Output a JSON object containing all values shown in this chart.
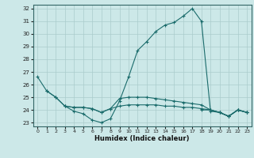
{
  "x": [
    0,
    1,
    2,
    3,
    4,
    5,
    6,
    7,
    8,
    9,
    10,
    11,
    12,
    13,
    14,
    15,
    16,
    17,
    18,
    19,
    20,
    21,
    22,
    23
  ],
  "line1": [
    26.6,
    25.5,
    25.0,
    24.3,
    23.9,
    23.7,
    23.2,
    23.0,
    23.3,
    24.7,
    26.6,
    28.7,
    29.4,
    30.2,
    30.7,
    30.9,
    31.4,
    32.0,
    31.0,
    23.9,
    23.8,
    23.5,
    24.0,
    23.8
  ],
  "line2": [
    null,
    25.5,
    25.0,
    24.3,
    24.2,
    24.2,
    24.1,
    23.8,
    24.1,
    24.9,
    25.0,
    25.0,
    25.0,
    24.9,
    24.8,
    24.7,
    24.6,
    24.5,
    24.4,
    24.0,
    23.8,
    23.5,
    24.0,
    23.8
  ],
  "line3": [
    null,
    null,
    null,
    24.3,
    24.2,
    24.2,
    24.1,
    23.8,
    24.1,
    24.3,
    24.4,
    24.4,
    24.4,
    24.4,
    24.3,
    24.3,
    24.2,
    24.2,
    24.1,
    24.0,
    23.8,
    23.5,
    24.0,
    23.8
  ],
  "line4": [
    null,
    null,
    null,
    null,
    null,
    null,
    null,
    null,
    null,
    null,
    null,
    null,
    null,
    null,
    null,
    null,
    null,
    null,
    24.0,
    24.0,
    23.8,
    23.5,
    24.0,
    23.8
  ],
  "bg_color": "#cce8e8",
  "grid_color": "#aacccc",
  "line_color": "#1a6b6b",
  "xlabel": "Humidex (Indice chaleur)",
  "ylim": [
    22.7,
    32.3
  ],
  "xlim": [
    -0.5,
    23.5
  ],
  "yticks": [
    23,
    24,
    25,
    26,
    27,
    28,
    29,
    30,
    31,
    32
  ],
  "xticks": [
    0,
    1,
    2,
    3,
    4,
    5,
    6,
    7,
    8,
    9,
    10,
    11,
    12,
    13,
    14,
    15,
    16,
    17,
    18,
    19,
    20,
    21,
    22,
    23
  ]
}
